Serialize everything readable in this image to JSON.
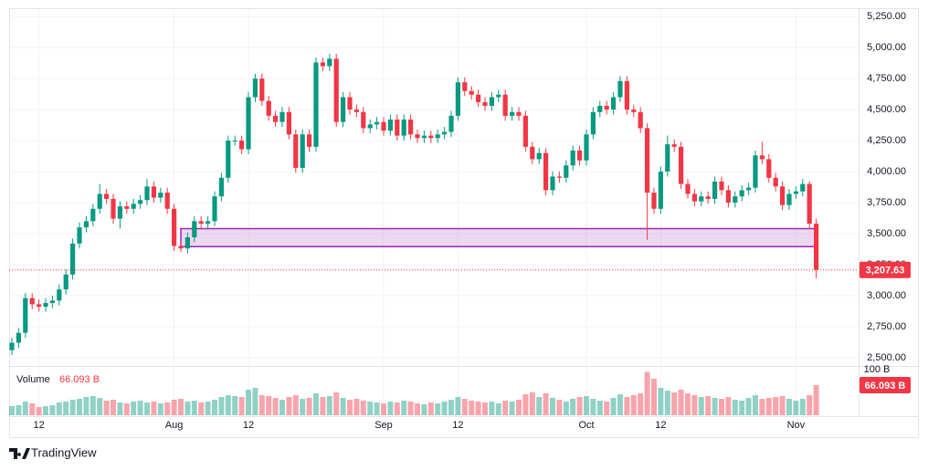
{
  "chart_data": {
    "type": "candlestick",
    "categories": [
      null,
      null,
      null,
      null,
      "12",
      null,
      null,
      null,
      null,
      null,
      null,
      null,
      null,
      null,
      null,
      null,
      null,
      null,
      null,
      null,
      null,
      null,
      null,
      null,
      "Aug",
      null,
      null,
      null,
      null,
      null,
      null,
      null,
      null,
      null,
      null,
      "12",
      null,
      null,
      null,
      null,
      null,
      null,
      null,
      null,
      null,
      null,
      null,
      null,
      null,
      null,
      null,
      null,
      null,
      null,
      null,
      "Sep",
      null,
      null,
      null,
      null,
      null,
      null,
      null,
      null,
      null,
      null,
      "12",
      null,
      null,
      null,
      null,
      null,
      null,
      null,
      null,
      null,
      null,
      null,
      null,
      null,
      null,
      null,
      null,
      null,
      null,
      "Oct",
      null,
      null,
      null,
      null,
      null,
      null,
      null,
      null,
      null,
      null,
      "12",
      null,
      null,
      null,
      null,
      null,
      null,
      null,
      null,
      null,
      null,
      null,
      null,
      null,
      null,
      null,
      null,
      null,
      null,
      null,
      "Nov",
      null,
      null,
      null
    ],
    "open": [
      2560,
      2620,
      2700,
      2980,
      2930,
      2910,
      2940,
      2960,
      3050,
      3170,
      3420,
      3550,
      3600,
      3700,
      3820,
      3780,
      3620,
      3720,
      3700,
      3740,
      3770,
      3880,
      3790,
      3830,
      3700,
      3400,
      3380,
      3470,
      3600,
      3580,
      3600,
      3800,
      3950,
      4250,
      4250,
      4180,
      4600,
      4750,
      4570,
      4450,
      4400,
      4480,
      4300,
      4030,
      4300,
      4200,
      4880,
      4850,
      4910,
      4400,
      4600,
      4500,
      4480,
      4350,
      4380,
      4400,
      4330,
      4420,
      4290,
      4420,
      4300,
      4270,
      4290,
      4270,
      4300,
      4320,
      4450,
      4720,
      4650,
      4620,
      4560,
      4530,
      4600,
      4620,
      4450,
      4480,
      4450,
      4200,
      4100,
      4150,
      3850,
      3960,
      3950,
      4050,
      4170,
      4090,
      4300,
      4480,
      4530,
      4500,
      4600,
      4730,
      4500,
      4480,
      4350,
      3830,
      3700,
      4000,
      4220,
      4200,
      3900,
      3820,
      3760,
      3800,
      3780,
      3920,
      3850,
      3750,
      3800,
      3850,
      3870,
      4130,
      4100,
      3950,
      3880,
      3730,
      3820,
      3840,
      3900,
      3580
    ],
    "high": [
      2660,
      2740,
      3020,
      3020,
      2970,
      2980,
      3000,
      3090,
      3210,
      3460,
      3590,
      3640,
      3740,
      3900,
      3860,
      3820,
      3760,
      3760,
      3780,
      3810,
      3940,
      3920,
      3870,
      3870,
      3740,
      3440,
      3510,
      3640,
      3640,
      3640,
      3840,
      3990,
      4290,
      4290,
      4290,
      4640,
      4790,
      4790,
      4610,
      4490,
      4520,
      4520,
      4340,
      4340,
      4340,
      4920,
      4920,
      4950,
      4950,
      4640,
      4640,
      4540,
      4520,
      4420,
      4440,
      4440,
      4460,
      4460,
      4460,
      4460,
      4340,
      4330,
      4330,
      4340,
      4360,
      4490,
      4760,
      4760,
      4690,
      4660,
      4600,
      4640,
      4660,
      4660,
      4520,
      4520,
      4490,
      4240,
      4190,
      4190,
      4000,
      4000,
      4090,
      4210,
      4210,
      4340,
      4520,
      4570,
      4570,
      4640,
      4770,
      4770,
      4540,
      4520,
      4390,
      3870,
      4040,
      4290,
      4260,
      4240,
      3940,
      3860,
      3840,
      3840,
      3960,
      3960,
      3890,
      3840,
      3890,
      3910,
      4170,
      4240,
      4140,
      3990,
      3920,
      3860,
      3880,
      3940,
      3920,
      3620
    ],
    "low": [
      2520,
      2580,
      2660,
      2890,
      2870,
      2870,
      2900,
      2920,
      3010,
      3130,
      3380,
      3510,
      3560,
      3660,
      3740,
      3580,
      3540,
      3660,
      3660,
      3700,
      3730,
      3750,
      3750,
      3660,
      3360,
      3350,
      3340,
      3430,
      3540,
      3540,
      3560,
      3760,
      3910,
      4210,
      4140,
      4140,
      4560,
      4530,
      4410,
      4360,
      4360,
      4260,
      3990,
      3990,
      4160,
      4160,
      4810,
      4810,
      4360,
      4360,
      4460,
      4440,
      4310,
      4310,
      4340,
      4290,
      4290,
      4250,
      4250,
      4260,
      4230,
      4230,
      4230,
      4230,
      4260,
      4280,
      4410,
      4610,
      4580,
      4520,
      4490,
      4490,
      4560,
      4410,
      4410,
      4410,
      4160,
      4060,
      4060,
      3810,
      3810,
      3910,
      3910,
      4010,
      4050,
      4050,
      4260,
      4440,
      4460,
      4460,
      4560,
      4460,
      4440,
      4310,
      3450,
      3660,
      3660,
      3960,
      4160,
      3860,
      3780,
      3720,
      3720,
      3740,
      3740,
      3810,
      3710,
      3710,
      3760,
      3810,
      3830,
      4060,
      3910,
      3840,
      3690,
      3690,
      3780,
      3800,
      3540,
      3140
    ],
    "close": [
      2620,
      2700,
      2980,
      2930,
      2910,
      2940,
      2960,
      3050,
      3170,
      3420,
      3550,
      3600,
      3700,
      3820,
      3780,
      3620,
      3720,
      3700,
      3740,
      3770,
      3880,
      3790,
      3830,
      3700,
      3400,
      3380,
      3470,
      3600,
      3580,
      3600,
      3800,
      3950,
      4250,
      4250,
      4180,
      4600,
      4750,
      4570,
      4450,
      4400,
      4480,
      4300,
      4030,
      4300,
      4200,
      4880,
      4850,
      4910,
      4400,
      4600,
      4500,
      4480,
      4350,
      4380,
      4400,
      4330,
      4420,
      4290,
      4420,
      4300,
      4270,
      4290,
      4270,
      4300,
      4320,
      4450,
      4720,
      4650,
      4620,
      4560,
      4530,
      4600,
      4620,
      4450,
      4480,
      4450,
      4200,
      4100,
      4150,
      3850,
      3960,
      3950,
      4050,
      4170,
      4090,
      4300,
      4480,
      4530,
      4500,
      4600,
      4730,
      4500,
      4480,
      4350,
      3830,
      3700,
      4000,
      4220,
      4200,
      3900,
      3820,
      3760,
      3800,
      3780,
      3920,
      3850,
      3750,
      3800,
      3850,
      3870,
      4130,
      4100,
      3950,
      3880,
      3730,
      3820,
      3840,
      3900,
      3580,
      3207.63
    ],
    "last_price_label": "3,207.63",
    "up_color": "#089981",
    "down_color": "#f23645",
    "ylim": [
      2440,
      5310
    ],
    "yticks": [
      {
        "value": 2500,
        "label": "2,500.00"
      },
      {
        "value": 2750,
        "label": "2,750.00"
      },
      {
        "value": 3000,
        "label": "3,000.00"
      },
      {
        "value": 3250,
        "label": "3,250.00"
      },
      {
        "value": 3500,
        "label": "3,500.00"
      },
      {
        "value": 3750,
        "label": "3,750.00"
      },
      {
        "value": 4000,
        "label": "4,000.00"
      },
      {
        "value": 4250,
        "label": "4,250.00"
      },
      {
        "value": 4500,
        "label": "4,500.00"
      },
      {
        "value": 4750,
        "label": "4,750.00"
      },
      {
        "value": 5000,
        "label": "5,000.00"
      },
      {
        "value": 5250,
        "label": "5,250.00"
      }
    ],
    "grid": true,
    "zone": {
      "top": 3540,
      "bottom": 3395,
      "start": 25,
      "end": 119,
      "color": "#9c27b0"
    },
    "volume": {
      "label": "Volume",
      "values": [
        20,
        22,
        30,
        26,
        18,
        20,
        22,
        28,
        30,
        34,
        36,
        40,
        42,
        38,
        32,
        34,
        28,
        26,
        30,
        32,
        28,
        30,
        26,
        28,
        34,
        36,
        30,
        32,
        28,
        30,
        34,
        40,
        44,
        42,
        40,
        56,
        60,
        44,
        42,
        38,
        34,
        40,
        44,
        36,
        38,
        48,
        40,
        42,
        50,
        38,
        34,
        36,
        32,
        30,
        28,
        26,
        30,
        28,
        32,
        30,
        26,
        24,
        28,
        26,
        30,
        34,
        40,
        36,
        32,
        30,
        28,
        30,
        26,
        32,
        30,
        34,
        46,
        50,
        40,
        48,
        38,
        34,
        30,
        36,
        40,
        42,
        36,
        32,
        30,
        38,
        46,
        40,
        44,
        48,
        95,
        80,
        60,
        54,
        50,
        56,
        48,
        44,
        40,
        42,
        38,
        36,
        40,
        34,
        32,
        38,
        44,
        36,
        38,
        40,
        42,
        36,
        32,
        36,
        44,
        66.093
      ],
      "last_value_label": "66.093 B",
      "ylim": [
        0,
        106
      ],
      "yticks": [
        {
          "value": 100,
          "label": "100 B"
        }
      ]
    },
    "branding": "TradingView"
  }
}
